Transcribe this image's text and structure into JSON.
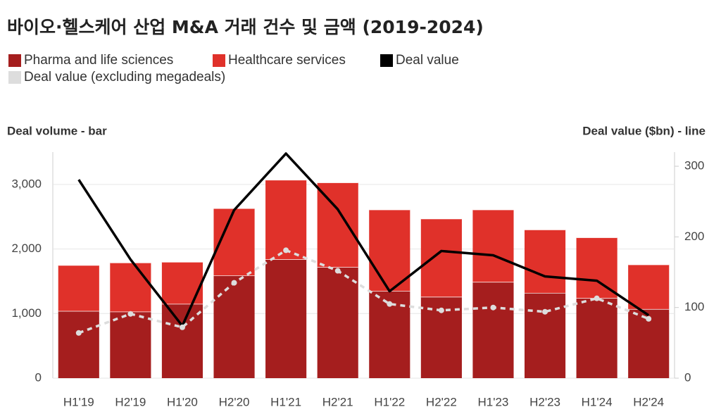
{
  "chart_data": {
    "type": "bar",
    "title": "바이오·헬스케어 산업 M&A 거래 건수 및 금액 (2019-2024)",
    "y_label": "Deal volume - bar",
    "y2_label": "Deal value ($bn) - line",
    "categories": [
      "H1'19",
      "H2'19",
      "H1'20",
      "H2'20",
      "H1'21",
      "H2'21",
      "H1'22",
      "H2'22",
      "H1'23",
      "H2'23",
      "H1'24",
      "H2'24"
    ],
    "stacked": true,
    "grid": true,
    "series": [
      {
        "name": "Pharma and life sciences",
        "color": "#a51e1e",
        "values": [
          1040,
          1030,
          1150,
          1590,
          1840,
          1720,
          1350,
          1260,
          1490,
          1320,
          1240,
          1070
        ]
      },
      {
        "name": "Healthcare services",
        "color": "#e0312a",
        "values": [
          710,
          760,
          650,
          1040,
          1230,
          1310,
          1260,
          1210,
          1120,
          980,
          940,
          690
        ]
      },
      {
        "name": "Deal value",
        "color": "#000000",
        "axis": "y2",
        "values": [
          281,
          168,
          74,
          238,
          318,
          239,
          123,
          180,
          174,
          144,
          138,
          89
        ]
      },
      {
        "name": "Deal value (excluding megadeals)",
        "color": "#dddddd",
        "axis": "y2",
        "dashed": true,
        "markers": true,
        "values": [
          64,
          91,
          72,
          135,
          181,
          152,
          105,
          96,
          100,
          94,
          113,
          84
        ]
      }
    ],
    "ylim": [
      0,
      3500
    ],
    "yticks": [
      0,
      {
        "value": 1000,
        "label": "1,000"
      },
      {
        "value": 2000,
        "label": "2,000"
      },
      {
        "value": 3000,
        "label": "3,000"
      }
    ],
    "y2lim": [
      0,
      320
    ],
    "y2ticks": [
      0,
      100,
      200,
      300
    ]
  }
}
